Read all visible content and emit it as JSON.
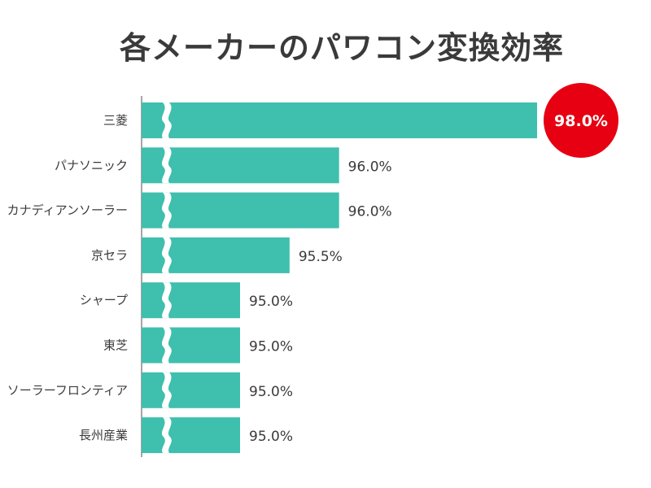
{
  "chart_data": {
    "type": "bar",
    "orientation": "horizontal",
    "title": "各メーカーのパワコン変換効率",
    "categories": [
      "三菱",
      "パナソニック",
      "カナディアンソーラー",
      "京セラ",
      "シャープ",
      "東芝",
      "ソーラーフロンティア",
      "長州産業"
    ],
    "values": [
      98.0,
      96.0,
      96.0,
      95.5,
      95.0,
      95.0,
      95.0,
      95.0
    ],
    "value_labels": [
      "98.0%",
      "96.0%",
      "96.0%",
      "95.5%",
      "95.0%",
      "95.0%",
      "95.0%",
      "95.0%"
    ],
    "axis_break": true,
    "highlight_index": 0,
    "colors": {
      "bar": "#3fbfad",
      "highlight_badge": "#e60012",
      "text": "#3a3a3a",
      "axis": "#888888"
    }
  }
}
